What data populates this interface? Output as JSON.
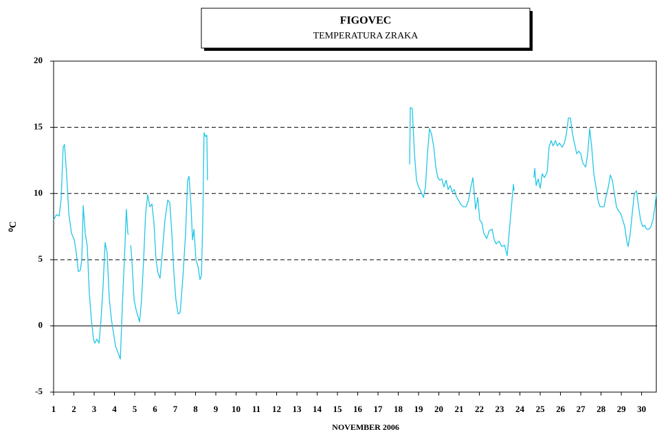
{
  "chart_data": {
    "type": "line",
    "title": "FIGOVEC",
    "subtitle": "TEMPERATURA ZRAKA",
    "x_label": "NOVEMBER 2006",
    "y_label": "⁰C",
    "xlim": [
      1,
      30.76
    ],
    "xticks": [
      1,
      2,
      3,
      4,
      5,
      6,
      7,
      8,
      9,
      10,
      11,
      12,
      13,
      14,
      15,
      16,
      17,
      18,
      19,
      20,
      21,
      22,
      23,
      24,
      25,
      26,
      27,
      28,
      29,
      30
    ],
    "ylim": [
      -5,
      20
    ],
    "yticks": [
      -5,
      0,
      5,
      10,
      15,
      20
    ],
    "grid": true,
    "series": [
      {
        "color": "#1fc6e6",
        "x": [
          1.0,
          1.14,
          1.27,
          1.37,
          1.47,
          1.54,
          1.64,
          1.75,
          1.88,
          2.02,
          2.12,
          2.22,
          2.32,
          2.39,
          2.46,
          2.56,
          2.66,
          2.76,
          2.86,
          2.97,
          3.03,
          3.14,
          3.24,
          3.34,
          3.44,
          3.54,
          3.64,
          3.75,
          3.85,
          3.95,
          4.05,
          4.29,
          4.39,
          4.49,
          4.59,
          4.66,
          4.69,
          4.72,
          4.8,
          4.86,
          4.97,
          5.07,
          5.24,
          5.34,
          5.44,
          5.54,
          5.64,
          5.75,
          5.85,
          5.95,
          6.05,
          6.15,
          6.25,
          6.36,
          6.49,
          6.63,
          6.73,
          6.83,
          6.93,
          7.03,
          7.14,
          7.24,
          7.37,
          7.51,
          7.61,
          7.68,
          7.78,
          7.85,
          7.92,
          8.02,
          8.12,
          8.22,
          8.29,
          8.36,
          8.42,
          8.49,
          8.56,
          8.59,
          12,
          18.56,
          18.59,
          18.69,
          18.8,
          18.9,
          19.0,
          19.1,
          19.24,
          19.34,
          19.44,
          19.54,
          19.64,
          19.75,
          19.85,
          19.95,
          20.05,
          20.15,
          20.25,
          20.36,
          20.46,
          20.56,
          20.66,
          20.76,
          20.86,
          20.97,
          21.07,
          21.2,
          21.34,
          21.47,
          21.58,
          21.68,
          21.75,
          21.81,
          21.92,
          22.02,
          22.12,
          22.22,
          22.36,
          22.49,
          22.63,
          22.73,
          22.83,
          22.97,
          23.1,
          23.24,
          23.37,
          23.44,
          23.58,
          23.68,
          23.71,
          24,
          24.69,
          24.73,
          24.8,
          24.9,
          25.0,
          25.1,
          25.2,
          25.34,
          25.44,
          25.54,
          25.64,
          25.75,
          25.85,
          25.95,
          26.08,
          26.19,
          26.29,
          26.39,
          26.49,
          26.59,
          26.69,
          26.8,
          26.9,
          27.0,
          27.1,
          27.24,
          27.34,
          27.44,
          27.54,
          27.64,
          27.75,
          27.85,
          27.95,
          28.05,
          28.15,
          28.25,
          28.36,
          28.46,
          28.56,
          28.66,
          28.76,
          28.86,
          28.97,
          29.07,
          29.17,
          29.27,
          29.34,
          29.44,
          29.54,
          29.64,
          29.75,
          29.85,
          29.95,
          30.05,
          30.15,
          30.25,
          30.36,
          30.46,
          30.56,
          30.66,
          30.73
        ],
        "values": [
          8.0,
          8.4,
          8.3,
          9.5,
          13.5,
          13.7,
          11.5,
          8.5,
          7.0,
          6.5,
          5.5,
          4.1,
          4.2,
          5.0,
          9.1,
          7.0,
          6.0,
          2.5,
          0.5,
          -1.0,
          -1.3,
          -1.0,
          -1.3,
          0.5,
          3.0,
          6.3,
          5.5,
          2.0,
          0.5,
          -0.5,
          -1.5,
          -2.5,
          1.5,
          5.0,
          8.8,
          7.0,
          6.9,
          null,
          6.1,
          5.0,
          2.0,
          1.2,
          0.3,
          2.0,
          5.0,
          8.5,
          9.9,
          9.0,
          9.2,
          7.8,
          5.0,
          4.0,
          3.6,
          5.5,
          8.0,
          9.5,
          9.3,
          7.0,
          4.0,
          2.0,
          0.9,
          1.0,
          3.5,
          7.0,
          11.0,
          11.3,
          9.0,
          6.5,
          7.3,
          5.0,
          4.5,
          3.5,
          3.8,
          8.0,
          14.6,
          14.3,
          14.4,
          11.0,
          null,
          12.2,
          16.5,
          16.4,
          13.0,
          11.0,
          10.5,
          10.2,
          9.7,
          10.5,
          13.0,
          14.9,
          14.5,
          13.5,
          12.0,
          11.2,
          11.0,
          11.1,
          10.5,
          11.0,
          10.3,
          10.6,
          10.1,
          10.3,
          9.8,
          9.5,
          9.2,
          9.0,
          9.0,
          9.5,
          10.5,
          11.2,
          10.0,
          8.8,
          9.7,
          8.0,
          7.8,
          7.0,
          6.6,
          7.2,
          7.3,
          6.5,
          6.2,
          6.4,
          6.0,
          6.1,
          5.3,
          6.5,
          9.0,
          10.7,
          10.2,
          null,
          11.2,
          11.9,
          10.6,
          11.1,
          10.4,
          11.5,
          11.2,
          11.6,
          13.5,
          14.0,
          13.6,
          14.0,
          13.6,
          13.8,
          13.5,
          13.8,
          14.5,
          15.7,
          15.7,
          14.5,
          13.8,
          13.0,
          13.2,
          13.0,
          12.3,
          12.0,
          13.0,
          14.9,
          13.5,
          11.5,
          10.5,
          9.5,
          9.0,
          9.0,
          9.0,
          9.8,
          10.5,
          11.4,
          11.0,
          10.0,
          9.0,
          8.7,
          8.5,
          8.0,
          7.5,
          6.4,
          6.0,
          7.0,
          8.5,
          10.0,
          10.2,
          9.0,
          8.0,
          7.5,
          7.6,
          7.3,
          7.3,
          7.5,
          8.0,
          9.0,
          10.0
        ]
      }
    ]
  }
}
